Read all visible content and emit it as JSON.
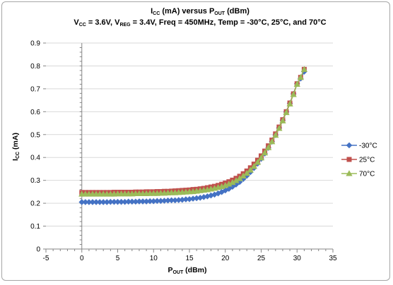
{
  "chart_data": {
    "type": "line",
    "title_line1": {
      "main": "I",
      "sub": "CC",
      "rest": " (mA) versus P",
      "sub2": "OUT",
      "end": " (dBm)"
    },
    "title_line2": {
      "seg1": "V",
      "sub1": "CC",
      "seg2": " = 3.6V, V",
      "sub2": "REG",
      "seg3": " = 3.4V, Freq = 450MHz, Temp = -30°C, 25°C, and 70°C"
    },
    "xlabel": {
      "main": "P",
      "sub": "OUT",
      "rest": " (dBm)"
    },
    "ylabel": {
      "main": "I",
      "sub": "CC",
      "rest": " (mA)"
    },
    "xlim": [
      -5,
      35
    ],
    "ylim": [
      0,
      0.9
    ],
    "x_ticks": [
      "-5",
      "0",
      "5",
      "10",
      "15",
      "20",
      "25",
      "30",
      "35"
    ],
    "y_ticks": [
      "0",
      "0.1",
      "0.2",
      "0.3",
      "0.4",
      "0.5",
      "0.6",
      "0.7",
      "0.8",
      "0.9"
    ],
    "x": [
      0,
      0.5,
      1,
      1.5,
      2,
      2.5,
      3,
      3.5,
      4,
      4.5,
      5,
      5.5,
      6,
      6.5,
      7,
      7.5,
      8,
      8.5,
      9,
      9.5,
      10,
      10.5,
      11,
      11.5,
      12,
      12.5,
      13,
      13.5,
      14,
      14.5,
      15,
      15.5,
      16,
      16.5,
      17,
      17.5,
      18,
      18.5,
      19,
      19.5,
      20,
      20.5,
      21,
      21.5,
      22,
      22.5,
      23,
      23.5,
      24,
      24.5,
      25,
      25.5,
      26,
      26.5,
      27,
      27.5,
      28,
      28.5,
      29,
      29.5,
      30,
      30.5,
      31
    ],
    "series": [
      {
        "name": "-30°C",
        "color": "#4472c4",
        "marker": "diamond",
        "values": [
          0.205,
          0.205,
          0.205,
          0.205,
          0.205,
          0.205,
          0.205,
          0.205,
          0.206,
          0.206,
          0.206,
          0.206,
          0.206,
          0.207,
          0.207,
          0.207,
          0.208,
          0.208,
          0.208,
          0.209,
          0.209,
          0.21,
          0.21,
          0.211,
          0.212,
          0.213,
          0.213,
          0.214,
          0.215,
          0.217,
          0.218,
          0.22,
          0.222,
          0.224,
          0.227,
          0.23,
          0.234,
          0.238,
          0.243,
          0.249,
          0.256,
          0.263,
          0.272,
          0.282,
          0.293,
          0.306,
          0.32,
          0.336,
          0.354,
          0.373,
          0.394,
          0.417,
          0.442,
          0.469,
          0.498,
          0.529,
          0.563,
          0.599,
          0.637,
          0.678,
          0.722,
          0.745,
          0.775
        ]
      },
      {
        "name": "25°C",
        "color": "#c0504d",
        "marker": "square",
        "values": [
          0.247,
          0.247,
          0.247,
          0.247,
          0.247,
          0.247,
          0.247,
          0.247,
          0.247,
          0.248,
          0.248,
          0.248,
          0.248,
          0.248,
          0.248,
          0.249,
          0.249,
          0.249,
          0.25,
          0.25,
          0.25,
          0.251,
          0.251,
          0.252,
          0.252,
          0.253,
          0.254,
          0.255,
          0.256,
          0.257,
          0.258,
          0.26,
          0.261,
          0.263,
          0.265,
          0.268,
          0.271,
          0.274,
          0.278,
          0.283,
          0.288,
          0.294,
          0.301,
          0.309,
          0.318,
          0.329,
          0.341,
          0.355,
          0.371,
          0.388,
          0.407,
          0.428,
          0.451,
          0.476,
          0.503,
          0.533,
          0.565,
          0.6,
          0.638,
          0.678,
          0.722,
          0.75,
          0.785
        ]
      },
      {
        "name": "70°C",
        "color": "#9bbb59",
        "marker": "triangle",
        "values": [
          0.24,
          0.24,
          0.24,
          0.24,
          0.24,
          0.24,
          0.24,
          0.24,
          0.24,
          0.24,
          0.241,
          0.241,
          0.241,
          0.241,
          0.241,
          0.242,
          0.242,
          0.242,
          0.242,
          0.243,
          0.243,
          0.243,
          0.244,
          0.244,
          0.245,
          0.246,
          0.246,
          0.247,
          0.248,
          0.249,
          0.25,
          0.251,
          0.253,
          0.255,
          0.257,
          0.259,
          0.262,
          0.265,
          0.269,
          0.273,
          0.278,
          0.284,
          0.291,
          0.299,
          0.308,
          0.319,
          0.331,
          0.345,
          0.361,
          0.379,
          0.398,
          0.42,
          0.443,
          0.469,
          0.497,
          0.527,
          0.56,
          0.596,
          0.634,
          0.675,
          0.72,
          0.75,
          0.785
        ]
      }
    ],
    "grid": "horizontal",
    "legend_position": "right"
  }
}
